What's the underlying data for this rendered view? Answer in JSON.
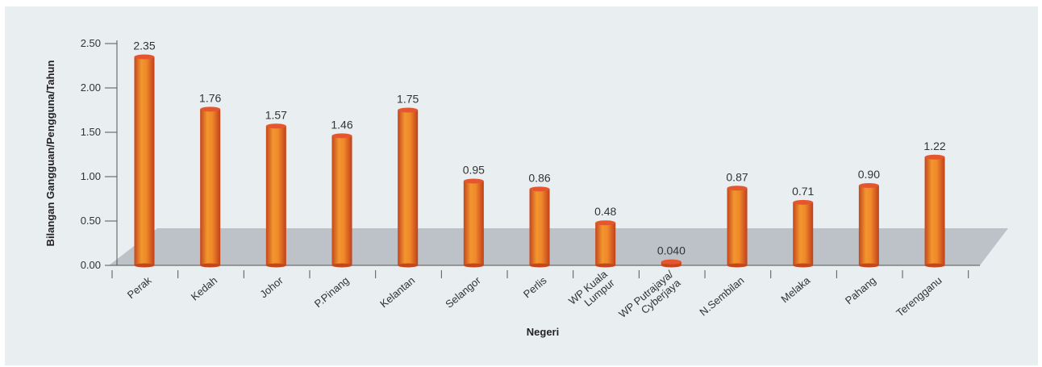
{
  "chart_data": {
    "type": "bar",
    "ylabel": "Bilangan Gangguan/Pengguna/Tahun",
    "xlabel": "Negeri",
    "ylim": [
      0,
      2.5
    ],
    "yticks": [
      "0.00",
      "0.50",
      "1.00",
      "1.50",
      "2.00",
      "2.50"
    ],
    "categories": [
      "Perak",
      "Kedah",
      "Johor",
      "P.Pinang",
      "Kelantan",
      "Selangor",
      "Perlis",
      "WP Kuala Lumpur",
      "WP Putrajaya/ Cyberjaya",
      "N.Sembilan",
      "Melaka",
      "Pahang",
      "Terengganu"
    ],
    "category_lines": [
      [
        "Perak"
      ],
      [
        "Kedah"
      ],
      [
        "Johor"
      ],
      [
        "P.Pinang"
      ],
      [
        "Kelantan"
      ],
      [
        "Selangor"
      ],
      [
        "Perlis"
      ],
      [
        "WP Kuala",
        "Lumpur"
      ],
      [
        "WP Putrajaya/",
        "Cyberjaya"
      ],
      [
        "N.Sembilan"
      ],
      [
        "Melaka"
      ],
      [
        "Pahang"
      ],
      [
        "Terengganu"
      ]
    ],
    "values": [
      2.35,
      1.76,
      1.57,
      1.46,
      1.75,
      0.95,
      0.86,
      0.48,
      0.04,
      0.87,
      0.71,
      0.9,
      1.22
    ],
    "value_labels": [
      "2.35",
      "1.76",
      "1.57",
      "1.46",
      "1.75",
      "0.95",
      "0.86",
      "0.48",
      "0.040",
      "0.87",
      "0.71",
      "0.90",
      "1.22"
    ],
    "grid": false,
    "colors": {
      "bar_dark": "#c9461a",
      "bar_mid": "#f08a2a",
      "bar_light": "#f7b24a",
      "bar_top": "#e4572e",
      "floor": "#bcc2c7"
    }
  }
}
